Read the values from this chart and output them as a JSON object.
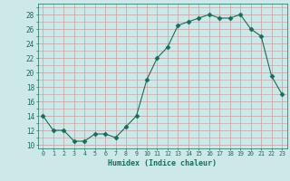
{
  "x": [
    0,
    1,
    2,
    3,
    4,
    5,
    6,
    7,
    8,
    9,
    10,
    11,
    12,
    13,
    14,
    15,
    16,
    17,
    18,
    19,
    20,
    21,
    22,
    23
  ],
  "y": [
    14,
    12,
    12,
    10.5,
    10.5,
    11.5,
    11.5,
    11,
    12.5,
    14,
    19,
    22,
    23.5,
    26.5,
    27,
    27.5,
    28,
    27.5,
    27.5,
    28,
    26,
    25,
    19.5,
    17
  ],
  "line_color": "#1a6b5a",
  "marker": "D",
  "marker_size": 2.5,
  "bg_color": "#cce8e8",
  "xlabel": "Humidex (Indice chaleur)",
  "xlabel_color": "#1a6b5a",
  "ylabel_values": [
    10,
    12,
    14,
    16,
    18,
    20,
    22,
    24,
    26,
    28
  ],
  "ylim": [
    9.5,
    29.5
  ],
  "xlim": [
    -0.5,
    23.5
  ],
  "xtick_labels": [
    "0",
    "1",
    "2",
    "3",
    "4",
    "5",
    "6",
    "7",
    "8",
    "9",
    "10",
    "11",
    "12",
    "13",
    "14",
    "15",
    "16",
    "17",
    "18",
    "19",
    "20",
    "21",
    "22",
    "23"
  ],
  "tick_color": "#1a6b5a",
  "tick_label_color": "#1a6b5a",
  "grid_color": "#c4a0a0"
}
